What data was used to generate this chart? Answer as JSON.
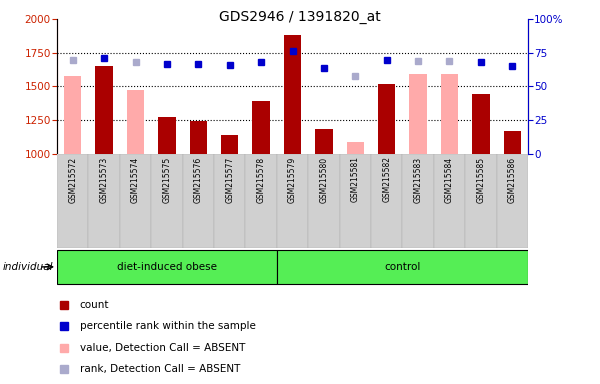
{
  "title": "GDS2946 / 1391820_at",
  "samples": [
    "GSM215572",
    "GSM215573",
    "GSM215574",
    "GSM215575",
    "GSM215576",
    "GSM215577",
    "GSM215578",
    "GSM215579",
    "GSM215580",
    "GSM215581",
    "GSM215582",
    "GSM215583",
    "GSM215584",
    "GSM215585",
    "GSM215586"
  ],
  "count_values": [
    null,
    1650,
    null,
    1270,
    1240,
    1140,
    1390,
    1880,
    1180,
    null,
    1520,
    null,
    null,
    1440,
    1170
  ],
  "absent_values": [
    1580,
    null,
    1470,
    null,
    null,
    null,
    null,
    null,
    null,
    1090,
    null,
    1590,
    1590,
    null,
    null
  ],
  "rank_present": [
    null,
    71,
    null,
    67,
    67,
    66,
    68,
    76,
    64,
    null,
    70,
    null,
    null,
    68,
    65
  ],
  "rank_absent": [
    70,
    null,
    68,
    null,
    null,
    null,
    null,
    null,
    null,
    58,
    null,
    69,
    69,
    null,
    null
  ],
  "ylim_left": [
    1000,
    2000
  ],
  "ylim_right": [
    0,
    100
  ],
  "yticks_left": [
    1000,
    1250,
    1500,
    1750,
    2000
  ],
  "yticks_right": [
    0,
    25,
    50,
    75,
    100
  ],
  "bar_color_present": "#aa0000",
  "bar_color_absent": "#ffaaaa",
  "rank_color_present": "#0000cc",
  "rank_color_absent": "#aaaacc",
  "plot_bg": "#ffffff",
  "group_band_color": "#55ee55",
  "grid_lines": [
    1250,
    1500,
    1750
  ],
  "obese_count": 7,
  "control_count": 8,
  "legend_items": [
    {
      "label": "count",
      "color": "#aa0000"
    },
    {
      "label": "percentile rank within the sample",
      "color": "#0000cc"
    },
    {
      "label": "value, Detection Call = ABSENT",
      "color": "#ffaaaa"
    },
    {
      "label": "rank, Detection Call = ABSENT",
      "color": "#aaaacc"
    }
  ]
}
